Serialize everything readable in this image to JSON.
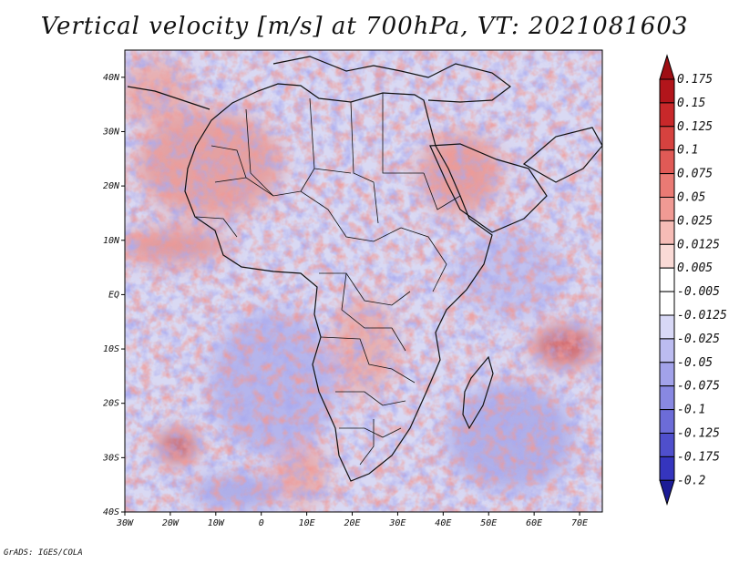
{
  "title": "Vertical velocity [m/s] at 700hPa, VT: 2021081603",
  "footer": "GrADS: IGES/COLA",
  "map": {
    "lon_range": [
      -30,
      75
    ],
    "lat_range": [
      -40,
      45
    ],
    "lat_ticks": [
      {
        "value": 40,
        "label": "40N"
      },
      {
        "value": 30,
        "label": "30N"
      },
      {
        "value": 20,
        "label": "20N"
      },
      {
        "value": 10,
        "label": "10N"
      },
      {
        "value": 0,
        "label": "EQ"
      },
      {
        "value": -10,
        "label": "10S"
      },
      {
        "value": -20,
        "label": "20S"
      },
      {
        "value": -30,
        "label": "30S"
      },
      {
        "value": -40,
        "label": "40S"
      }
    ],
    "lon_ticks": [
      {
        "value": -30,
        "label": "30W"
      },
      {
        "value": -20,
        "label": "20W"
      },
      {
        "value": -10,
        "label": "10W"
      },
      {
        "value": 0,
        "label": "0"
      },
      {
        "value": 10,
        "label": "10E"
      },
      {
        "value": 20,
        "label": "20E"
      },
      {
        "value": 30,
        "label": "30E"
      },
      {
        "value": 40,
        "label": "40E"
      },
      {
        "value": 50,
        "label": "50E"
      },
      {
        "value": 60,
        "label": "60E"
      },
      {
        "value": 70,
        "label": "70E"
      }
    ]
  },
  "colorbar": {
    "levels": [
      {
        "label": "0.175",
        "color": "#b2151b"
      },
      {
        "label": "0.15",
        "color": "#c8282a"
      },
      {
        "label": "0.125",
        "color": "#d6423f"
      },
      {
        "label": "0.1",
        "color": "#e05a56"
      },
      {
        "label": "0.075",
        "color": "#ea7a74"
      },
      {
        "label": "0.05",
        "color": "#f09a94"
      },
      {
        "label": "0.025",
        "color": "#f6bcb6"
      },
      {
        "label": "0.0125",
        "color": "#fadad6"
      },
      {
        "label": "0.005",
        "color": "#ffffff"
      },
      {
        "label": "-0.005",
        "color": "#ffffff"
      },
      {
        "label": "-0.0125",
        "color": "#d8d8f6"
      },
      {
        "label": "-0.025",
        "color": "#bcbcf0"
      },
      {
        "label": "-0.05",
        "color": "#a2a2ea"
      },
      {
        "label": "-0.075",
        "color": "#8888e2"
      },
      {
        "label": "-0.1",
        "color": "#6c6cd8"
      },
      {
        "label": "-0.125",
        "color": "#4f4fcc"
      },
      {
        "label": "-0.175",
        "color": "#3535be"
      },
      {
        "label": "-0.2",
        "color": "#2222a8"
      }
    ],
    "top_color": "#9e0e14",
    "bottom_color": "#1c1c96"
  }
}
